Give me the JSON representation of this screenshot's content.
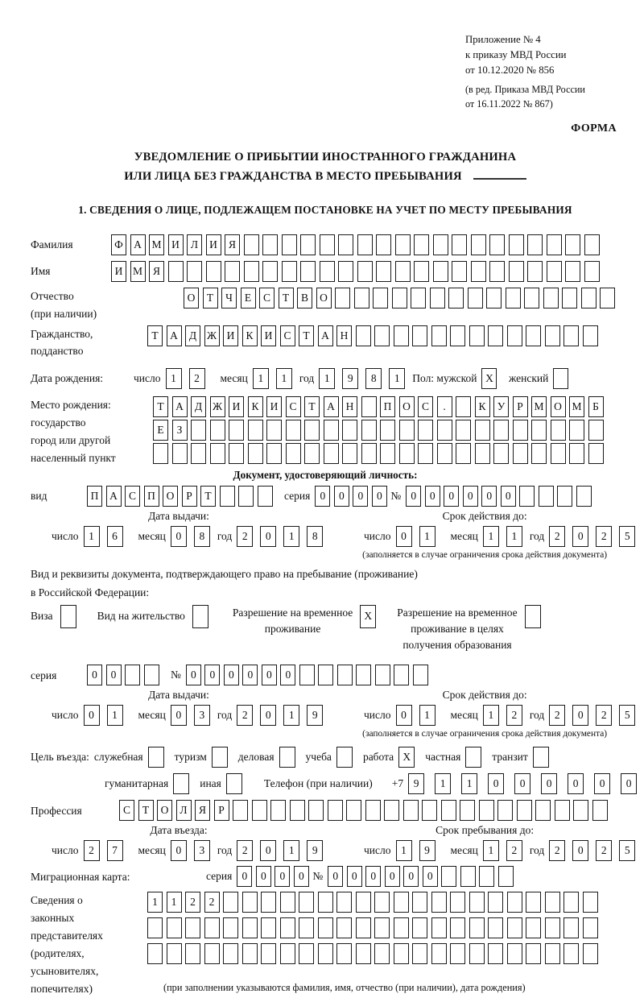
{
  "header": {
    "appendix_lines": [
      "Приложение № 4",
      "к приказу МВД России",
      "от 10.12.2020 № 856"
    ],
    "revision_lines": [
      "(в ред. Приказа МВД России",
      "от 16.11.2022 № 867)"
    ],
    "form_label": "ФОРМА"
  },
  "title": {
    "line1": "УВЕДОМЛЕНИЕ О ПРИБЫТИИ ИНОСТРАННОГО ГРАЖДАНИНА",
    "line2": "ИЛИ ЛИЦА БЕЗ ГРАЖДАНСТВА В МЕСТО ПРЕБЫВАНИЯ"
  },
  "section1_heading": "1. СВЕДЕНИЯ О ЛИЦЕ, ПОДЛЕЖАЩЕМ ПОСТАНОВКЕ НА УЧЕТ ПО МЕСТУ ПРЕБЫВАНИЯ",
  "common": {
    "day_label": "число",
    "month_label": "месяц",
    "year_label": "год",
    "series_label": "серия",
    "number_label": "№",
    "issue_head": "Дата выдачи:",
    "expiry_head": "Срок действия до:",
    "validity_note": "(заполняется в случае ограничения срока действия документа)"
  },
  "fields": {
    "surname": {
      "label": "Фамилия",
      "cells": {
        "chars": "ФАМИЛИЯ",
        "len": 26
      }
    },
    "name": {
      "label": "Имя",
      "cells": {
        "chars": "ИМЯ",
        "len": 26
      }
    },
    "patronymic": {
      "label": "Отчество\n(при наличии)",
      "cells": {
        "chars": "ОТЧЕСТВО",
        "len": 23
      }
    },
    "citizenship": {
      "label": "Гражданство,\nподданство",
      "cells": {
        "chars": "ТАДЖИКИСТАН",
        "len": 24
      }
    },
    "birthdate": {
      "label": "Дата рождения:",
      "day": {
        "chars": "12",
        "len": 2
      },
      "month": {
        "chars": "11",
        "len": 2
      },
      "year": {
        "chars": "1981",
        "len": 4
      },
      "gender_label": "Пол: мужской",
      "male": {
        "chars": "X",
        "len": 1
      },
      "female_label": "женский",
      "female": {
        "chars": "",
        "len": 1
      }
    },
    "birthplace": {
      "label": "Место рождения:\nгосударство\nгород или другой\nнаселенный пункт",
      "row1": {
        "chars": "ТАДЖИКИСТАН ПОС. КУРМОМБ",
        "len": 24
      },
      "row2": {
        "chars": "ЕЗ",
        "len": 24
      },
      "row3": {
        "chars": "",
        "len": 24
      }
    },
    "identity_doc": {
      "heading": "Документ, удостоверяющий личность:",
      "type_label": "вид",
      "type": {
        "chars": "ПАСПОРТ",
        "len": 10
      },
      "series": {
        "chars": "0000",
        "len": 4
      },
      "number": {
        "chars": "000000",
        "len": 10
      },
      "issue_day": {
        "chars": "16",
        "len": 2
      },
      "issue_month": {
        "chars": "08",
        "len": 2
      },
      "issue_year": {
        "chars": "2018",
        "len": 4
      },
      "expiry_day": {
        "chars": "01",
        "len": 2
      },
      "expiry_month": {
        "chars": "11",
        "len": 2
      },
      "expiry_year": {
        "chars": "2025",
        "len": 4
      }
    },
    "residence_doc": {
      "line1": "Вид и реквизиты документа, подтверждающего право на пребывание (проживание)",
      "line2": "в Российской Федерации:",
      "options": [
        {
          "label": "Виза",
          "value": {
            "chars": "",
            "len": 1
          }
        },
        {
          "label": "Вид на жительство",
          "value": {
            "chars": "",
            "len": 1
          }
        },
        {
          "label": "Разрешение на временное\nпроживание",
          "value": {
            "chars": "X",
            "len": 1
          }
        },
        {
          "label": "Разрешение на временное\nпроживание в целях\nполучения образования",
          "value": {
            "chars": "",
            "len": 1
          }
        }
      ],
      "series": {
        "chars": "00",
        "len": 4
      },
      "number": {
        "chars": "000000",
        "len": 13
      },
      "issue_day": {
        "chars": "01",
        "len": 2
      },
      "issue_month": {
        "chars": "03",
        "len": 2
      },
      "issue_year": {
        "chars": "2019",
        "len": 4
      },
      "expiry_day": {
        "chars": "01",
        "len": 2
      },
      "expiry_month": {
        "chars": "12",
        "len": 2
      },
      "expiry_year": {
        "chars": "2025",
        "len": 4
      }
    },
    "purpose": {
      "label": "Цель въезда:",
      "options": [
        {
          "label": "служебная",
          "value": {
            "chars": "",
            "len": 1
          }
        },
        {
          "label": "туризм",
          "value": {
            "chars": "",
            "len": 1
          }
        },
        {
          "label": "деловая",
          "value": {
            "chars": "",
            "len": 1
          }
        },
        {
          "label": "учеба",
          "value": {
            "chars": "",
            "len": 1
          }
        },
        {
          "label": "работа",
          "value": {
            "chars": "X",
            "len": 1
          }
        },
        {
          "label": "частная",
          "value": {
            "chars": "",
            "len": 1
          }
        },
        {
          "label": "транзит",
          "value": {
            "chars": "",
            "len": 1
          }
        }
      ],
      "options2": [
        {
          "label": "гуманитарная",
          "value": {
            "chars": "",
            "len": 1
          }
        },
        {
          "label": "иная",
          "value": {
            "chars": "",
            "len": 1
          }
        }
      ],
      "phone_label": "Телефон (при наличии)",
      "phone_prefix": "+7",
      "phone": {
        "chars": "911000000",
        "len": 10
      }
    },
    "profession": {
      "label": "Профессия",
      "cells": {
        "chars": "СТОЛЯР",
        "len": 26
      }
    },
    "entry": {
      "entry_head": "Дата въезда:",
      "stay_head": "Срок пребывания до:",
      "entry_day": {
        "chars": "27",
        "len": 2
      },
      "entry_month": {
        "chars": "03",
        "len": 2
      },
      "entry_year": {
        "chars": "2019",
        "len": 4
      },
      "stay_day": {
        "chars": "19",
        "len": 2
      },
      "stay_month": {
        "chars": "12",
        "len": 2
      },
      "stay_year": {
        "chars": "2025",
        "len": 4
      }
    },
    "migration_card": {
      "label": "Миграционная карта:",
      "series": {
        "chars": "0000",
        "len": 4
      },
      "number": {
        "chars": "000000",
        "len": 10
      }
    },
    "representatives": {
      "label": "Сведения о\nзаконных\nпредставителях\n(родителях,\nусыновителях,\nпопечителях)",
      "row1": {
        "chars": "1122",
        "len": 24
      },
      "row2": {
        "chars": "",
        "len": 24
      },
      "row3": {
        "chars": "",
        "len": 24
      },
      "note": "(при заполнении указываются фамилия, имя, отчество (при наличии), дата рождения)"
    }
  }
}
